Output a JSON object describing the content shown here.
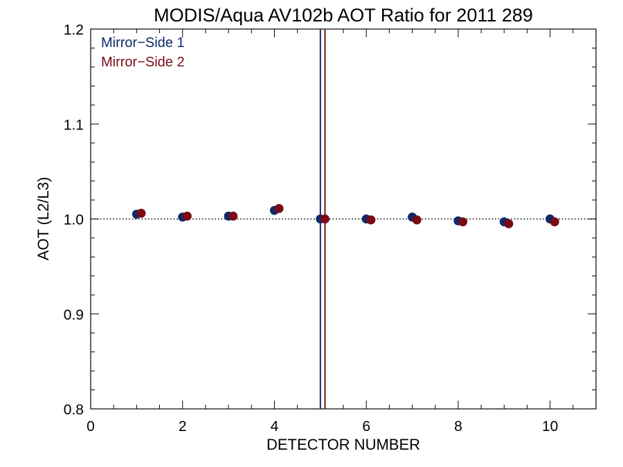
{
  "chart_data": {
    "type": "scatter",
    "title": "MODIS/Aqua AV102b AOT Ratio for 2011 289",
    "xlabel": "DETECTOR NUMBER",
    "ylabel": "AOT (L2/L3)",
    "xlim": [
      0,
      11
    ],
    "ylim": [
      0.8,
      1.2
    ],
    "x_ticks": [
      0,
      2,
      4,
      6,
      8,
      10
    ],
    "x_tick_labels": [
      "0",
      "2",
      "4",
      "6",
      "8",
      "10"
    ],
    "y_ticks": [
      0.8,
      0.9,
      1.0,
      1.1,
      1.2
    ],
    "y_tick_labels": [
      "0.8",
      "0.9",
      "1.0",
      "1.1",
      "1.2"
    ],
    "reference_line": {
      "y": 1.0,
      "style": "dotted"
    },
    "legend_position": "top-left",
    "series": [
      {
        "name": "Mirror−Side 1",
        "color": "#0d2a6b",
        "x": [
          1,
          2,
          3,
          4,
          5,
          6,
          7,
          8,
          9,
          10
        ],
        "y": [
          1.005,
          1.002,
          1.003,
          1.009,
          1.0,
          1.0,
          1.002,
          0.998,
          0.997,
          1.0
        ],
        "vertical_line_x": 5
      },
      {
        "name": "Mirror−Side 2",
        "color": "#7a0a14",
        "x": [
          1.1,
          2.1,
          3.1,
          4.1,
          5.1,
          6.1,
          7.1,
          8.1,
          9.1,
          10.1
        ],
        "y": [
          1.006,
          1.003,
          1.003,
          1.011,
          1.0,
          0.999,
          0.999,
          0.997,
          0.995,
          0.997
        ],
        "vertical_line_x": 5.1
      }
    ]
  }
}
